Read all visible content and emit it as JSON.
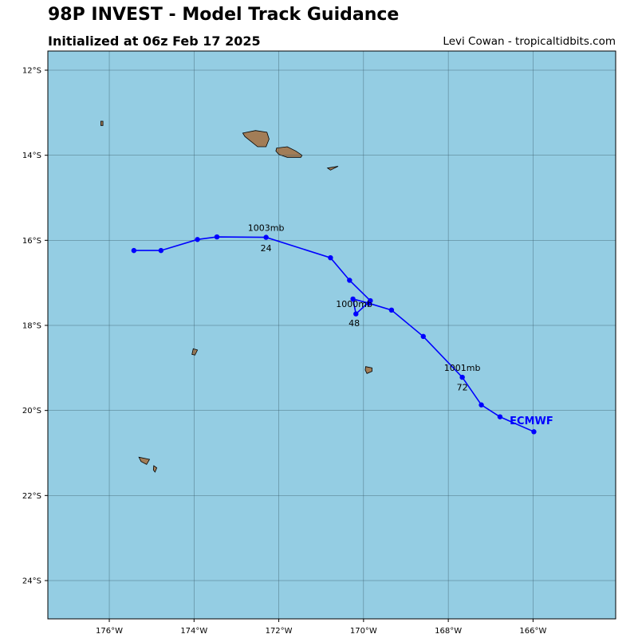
{
  "header": {
    "title": "98P INVEST - Model Track Guidance",
    "subtitle": "Initialized at 06z Feb 17 2025",
    "credit": "Levi Cowan - tropicaltidbits.com"
  },
  "colors": {
    "ocean": "#94cde3",
    "land": "#a27d57",
    "grid": "#3b5e6b",
    "track": "#0000ff"
  },
  "chart_data": {
    "type": "map",
    "xlim": [
      -177.45,
      -164.05
    ],
    "ylim": [
      -24.9,
      -11.55
    ],
    "lon_ticks": [
      -176,
      -174,
      -172,
      -170,
      -168,
      -166
    ],
    "lat_ticks": [
      -12,
      -14,
      -16,
      -18,
      -20,
      -22,
      -24
    ],
    "lon_tick_labels": [
      "176°W",
      "174°W",
      "172°W",
      "170°W",
      "168°W",
      "166°W"
    ],
    "lat_tick_labels": [
      "12°S",
      "14°S",
      "16°S",
      "18°S",
      "20°S",
      "22°S",
      "24°S"
    ],
    "grid": true,
    "series": [
      {
        "name": "ECMWF",
        "lon": [
          -165.98,
          -166.78,
          -167.22,
          -167.67,
          -168.59,
          -169.34,
          -169.87,
          -170.25,
          -170.18,
          -169.84,
          -170.33,
          -170.78,
          -172.3,
          -173.46,
          -173.92,
          -174.78,
          -175.42
        ],
        "lat": [
          -20.5,
          -20.15,
          -19.87,
          -19.22,
          -18.26,
          -17.64,
          -17.48,
          -17.38,
          -17.73,
          -17.42,
          -16.94,
          -16.41,
          -15.93,
          -15.92,
          -15.98,
          -16.24,
          -16.24
        ]
      }
    ],
    "annotations": [
      {
        "text": "1003mb",
        "lon": -172.3,
        "lat": -15.7
      },
      {
        "text": "24",
        "lon": -172.3,
        "lat": -16.18
      },
      {
        "text": "1000mb",
        "lon": -170.22,
        "lat": -17.49
      },
      {
        "text": "48",
        "lon": -170.22,
        "lat": -17.94
      },
      {
        "text": "1001mb",
        "lon": -167.67,
        "lat": -18.99
      },
      {
        "text": "72",
        "lon": -167.67,
        "lat": -19.45
      }
    ],
    "land": [
      {
        "name": "island",
        "coords": [
          [
            -172.85,
            -13.48
          ],
          [
            -172.55,
            -13.42
          ],
          [
            -172.28,
            -13.46
          ],
          [
            -172.23,
            -13.62
          ],
          [
            -172.3,
            -13.8
          ],
          [
            -172.5,
            -13.8
          ],
          [
            -172.65,
            -13.68
          ],
          [
            -172.8,
            -13.56
          ]
        ]
      },
      {
        "name": "island",
        "coords": [
          [
            -172.05,
            -13.83
          ],
          [
            -171.8,
            -13.8
          ],
          [
            -171.6,
            -13.9
          ],
          [
            -171.45,
            -14.0
          ],
          [
            -171.48,
            -14.05
          ],
          [
            -171.8,
            -14.05
          ],
          [
            -172.0,
            -13.98
          ],
          [
            -172.07,
            -13.9
          ]
        ]
      },
      {
        "name": "island",
        "coords": [
          [
            -170.85,
            -14.3
          ],
          [
            -170.6,
            -14.26
          ],
          [
            -170.78,
            -14.35
          ]
        ]
      },
      {
        "name": "island",
        "coords": [
          [
            -176.2,
            -13.2
          ],
          [
            -176.15,
            -13.2
          ],
          [
            -176.15,
            -13.3
          ],
          [
            -176.2,
            -13.3
          ]
        ]
      },
      {
        "name": "island",
        "coords": [
          [
            -174.02,
            -18.55
          ],
          [
            -173.92,
            -18.58
          ],
          [
            -173.98,
            -18.7
          ],
          [
            -174.05,
            -18.68
          ]
        ]
      },
      {
        "name": "island",
        "coords": [
          [
            -169.95,
            -18.97
          ],
          [
            -169.8,
            -19.0
          ],
          [
            -169.8,
            -19.08
          ],
          [
            -169.92,
            -19.13
          ],
          [
            -169.96,
            -19.05
          ]
        ]
      },
      {
        "name": "island",
        "coords": [
          [
            -175.3,
            -21.1
          ],
          [
            -175.05,
            -21.15
          ],
          [
            -175.12,
            -21.27
          ],
          [
            -175.25,
            -21.2
          ]
        ]
      },
      {
        "name": "island",
        "coords": [
          [
            -174.95,
            -21.3
          ],
          [
            -174.88,
            -21.35
          ],
          [
            -174.92,
            -21.45
          ],
          [
            -174.96,
            -21.4
          ]
        ]
      }
    ],
    "model_label": {
      "text": "ECMWF",
      "lon": -166.55,
      "lat": -20.25
    }
  }
}
